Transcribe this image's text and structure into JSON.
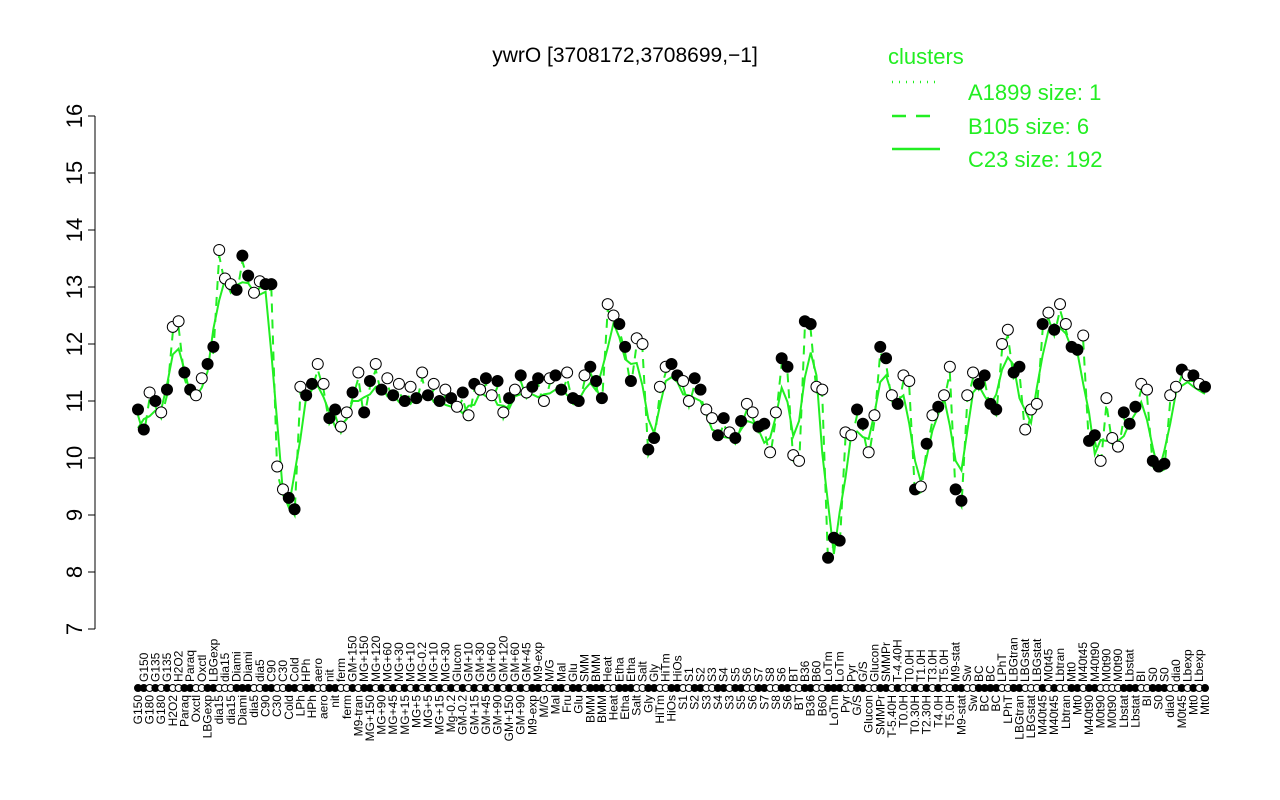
{
  "chart_data": {
    "type": "scatter",
    "title": "ywrO [3708172,3708699,−1]",
    "xlabel": "",
    "ylabel": "",
    "ylim": [
      7,
      16
    ],
    "yticks": [
      7,
      8,
      9,
      10,
      11,
      12,
      13,
      14,
      15,
      16
    ],
    "grid": false,
    "legend_title": "clusters",
    "legend_position": "top-right",
    "line_color": "#22ee22",
    "series": [
      {
        "name": "A1899 size: 1",
        "style": "dotted"
      },
      {
        "name": "B105 size: 6",
        "style": "dashed"
      },
      {
        "name": "C23 size: 192",
        "style": "solid"
      }
    ],
    "points": [
      [
        "G150",
        10.85
      ],
      [
        "G150",
        10.5
      ],
      [
        "G180",
        11.15
      ],
      [
        "G135",
        11.0
      ],
      [
        "G180",
        10.8
      ],
      [
        "G135",
        11.2
      ],
      [
        "H2O2",
        12.3
      ],
      [
        "H2O2",
        12.4
      ],
      [
        "Paraq",
        11.5
      ],
      [
        "Paraq",
        11.2
      ],
      [
        "Oxctl",
        11.1
      ],
      [
        "Oxctl",
        11.4
      ],
      [
        "LBGexp",
        11.65
      ],
      [
        "LBGexp",
        11.95
      ],
      [
        "dia15",
        13.65
      ],
      [
        "dia15",
        13.15
      ],
      [
        "dia15",
        13.05
      ],
      [
        "Diami",
        12.95
      ],
      [
        "Diami",
        13.55
      ],
      [
        "Diami",
        13.2
      ],
      [
        "dia5",
        12.9
      ],
      [
        "dia5",
        13.1
      ],
      [
        "C90",
        13.05
      ],
      [
        "C90",
        13.05
      ],
      [
        "C30",
        9.85
      ],
      [
        "C30",
        9.45
      ],
      [
        "Cold",
        9.3
      ],
      [
        "Cold",
        9.1
      ],
      [
        "LPh",
        11.25
      ],
      [
        "HPh",
        11.1
      ],
      [
        "HPh",
        11.3
      ],
      [
        "aero",
        11.65
      ],
      [
        "aero",
        11.3
      ],
      [
        "nit",
        10.7
      ],
      [
        "nit",
        10.85
      ],
      [
        "ferm",
        10.55
      ],
      [
        "ferm",
        10.8
      ],
      [
        "GM+150",
        11.15
      ],
      [
        "M9-tran",
        11.5
      ],
      [
        "MG+150",
        10.8
      ],
      [
        "MG+150",
        11.35
      ],
      [
        "MG+120",
        11.65
      ],
      [
        "MG+90",
        11.2
      ],
      [
        "MG+60",
        11.4
      ],
      [
        "MG+45",
        11.1
      ],
      [
        "MG+30",
        11.3
      ],
      [
        "MG+15",
        11.0
      ],
      [
        "MG+10",
        11.25
      ],
      [
        "MG+5",
        11.05
      ],
      [
        "MG-0.2",
        11.5
      ],
      [
        "MG+5",
        11.1
      ],
      [
        "MG+10",
        11.3
      ],
      [
        "MG+15",
        11.0
      ],
      [
        "MG+30",
        11.2
      ],
      [
        "Mg-0.2",
        11.05
      ],
      [
        "Glucon",
        10.9
      ],
      [
        "GM-0.2",
        11.15
      ],
      [
        "GM+10",
        10.75
      ],
      [
        "GM+15",
        11.3
      ],
      [
        "GM+30",
        11.2
      ],
      [
        "GM+45",
        11.4
      ],
      [
        "GM+60",
        11.1
      ],
      [
        "GM+90",
        11.35
      ],
      [
        "GM+120",
        10.8
      ],
      [
        "GM+150",
        11.05
      ],
      [
        "GM+60",
        11.2
      ],
      [
        "GM+90",
        11.45
      ],
      [
        "GM+45",
        11.15
      ],
      [
        "M9-exp",
        11.25
      ],
      [
        "M9-exp",
        11.4
      ],
      [
        "M/G",
        11.0
      ],
      [
        "M/G",
        11.4
      ],
      [
        "Mal",
        11.45
      ],
      [
        "Mal",
        11.2
      ],
      [
        "Fru",
        11.5
      ],
      [
        "Glu",
        11.05
      ],
      [
        "Glu",
        11.0
      ],
      [
        "SMM",
        11.45
      ],
      [
        "BMM",
        11.6
      ],
      [
        "BMM",
        11.35
      ],
      [
        "BMM",
        11.05
      ],
      [
        "Heat",
        12.7
      ],
      [
        "Heat",
        12.5
      ],
      [
        "Etha",
        12.35
      ],
      [
        "Etha",
        11.95
      ],
      [
        "Etha",
        11.35
      ],
      [
        "Salt",
        12.1
      ],
      [
        "Salt",
        12.0
      ],
      [
        "Gly",
        10.15
      ],
      [
        "Gly",
        10.35
      ],
      [
        "HiTm",
        11.25
      ],
      [
        "HiTm",
        11.6
      ],
      [
        "HiOs",
        11.65
      ],
      [
        "HiOs",
        11.45
      ],
      [
        "S1",
        11.35
      ],
      [
        "S1",
        11.0
      ],
      [
        "S2",
        11.4
      ],
      [
        "S2",
        11.2
      ],
      [
        "S3",
        10.85
      ],
      [
        "S3",
        10.7
      ],
      [
        "S4",
        10.4
      ],
      [
        "S4",
        10.7
      ],
      [
        "S3",
        10.45
      ],
      [
        "S5",
        10.35
      ],
      [
        "S5",
        10.65
      ],
      [
        "S6",
        10.95
      ],
      [
        "S6",
        10.8
      ],
      [
        "S7",
        10.55
      ],
      [
        "S7",
        10.6
      ],
      [
        "S8",
        10.1
      ],
      [
        "S8",
        10.8
      ],
      [
        "S6",
        11.75
      ],
      [
        "S6",
        11.6
      ],
      [
        "BT",
        10.05
      ],
      [
        "BT",
        9.95
      ],
      [
        "B36",
        12.4
      ],
      [
        "B36",
        12.35
      ],
      [
        "B60",
        11.25
      ],
      [
        "B60",
        11.2
      ],
      [
        "LoTm",
        8.25
      ],
      [
        "LoTm",
        8.6
      ],
      [
        "LoTm",
        8.55
      ],
      [
        "Pyr",
        10.45
      ],
      [
        "Pyr",
        10.4
      ],
      [
        "G/S",
        10.85
      ],
      [
        "G/S",
        10.6
      ],
      [
        "Glucon",
        10.1
      ],
      [
        "Glucon",
        10.75
      ],
      [
        "SMMPr",
        11.95
      ],
      [
        "SMMPr",
        11.75
      ],
      [
        "T-5.40H",
        11.1
      ],
      [
        "T-4.40H",
        10.95
      ],
      [
        "T0.0H",
        11.45
      ],
      [
        "T0.0H",
        11.35
      ],
      [
        "T0.30H",
        9.45
      ],
      [
        "T1.0H",
        9.5
      ],
      [
        "T2.30H",
        10.25
      ],
      [
        "T3.0H",
        10.75
      ],
      [
        "T4.0H",
        10.9
      ],
      [
        "T5.0H",
        11.1
      ],
      [
        "T5.0H",
        11.6
      ],
      [
        "M9-stat",
        9.45
      ],
      [
        "M9-stat",
        9.25
      ],
      [
        "Sw",
        11.1
      ],
      [
        "Sw",
        11.5
      ],
      [
        "BC",
        11.3
      ],
      [
        "BC",
        11.45
      ],
      [
        "BC",
        10.95
      ],
      [
        "BC",
        10.85
      ],
      [
        "LPhT",
        12.0
      ],
      [
        "LPhT",
        12.25
      ],
      [
        "LBGtran",
        11.5
      ],
      [
        "LBGtran",
        11.6
      ],
      [
        "LBGstat",
        10.5
      ],
      [
        "LBGstat",
        10.85
      ],
      [
        "LBGstat",
        10.95
      ],
      [
        "M40t45",
        12.35
      ],
      [
        "M0t45",
        12.55
      ],
      [
        "M40t45",
        12.25
      ],
      [
        "Lbtran",
        12.7
      ],
      [
        "Lbtran",
        12.35
      ],
      [
        "Mt0",
        11.95
      ],
      [
        "Mt0",
        11.9
      ],
      [
        "M40t45",
        12.15
      ],
      [
        "M40t90",
        10.3
      ],
      [
        "M40t90",
        10.4
      ],
      [
        "M0t90",
        9.95
      ],
      [
        "M0t90",
        11.05
      ],
      [
        "M0t90",
        10.35
      ],
      [
        "M0t90",
        10.2
      ],
      [
        "Lbstat",
        10.8
      ],
      [
        "Lbstat",
        10.6
      ],
      [
        "Lbstat",
        10.9
      ],
      [
        "BI",
        11.3
      ],
      [
        "BI",
        11.2
      ],
      [
        "S0",
        9.95
      ],
      [
        "S0",
        9.85
      ],
      [
        "S0",
        9.9
      ],
      [
        "dia0",
        11.1
      ],
      [
        "dia0",
        11.25
      ],
      [
        "M0t45",
        11.55
      ],
      [
        "Lbexp",
        11.45
      ],
      [
        "Mt0",
        11.45
      ],
      [
        "Lbexp",
        11.3
      ],
      [
        "Mt0",
        11.25
      ]
    ]
  }
}
